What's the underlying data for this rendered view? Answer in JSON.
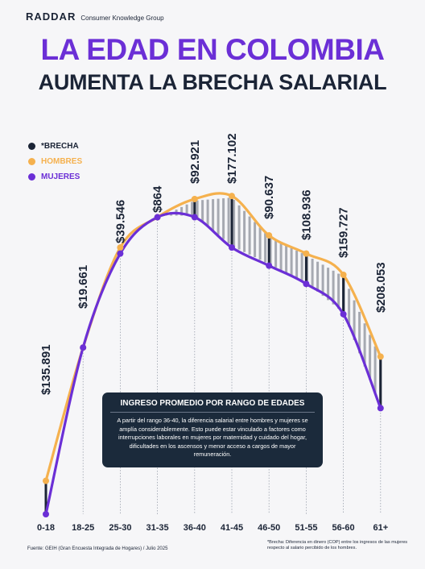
{
  "brand": {
    "logo": "RADDAR",
    "subtitle": "Consumer Knowledge Group"
  },
  "title_line1": "LA EDAD EN COLOMBIA",
  "title_line2": "AUMENTA LA BRECHA SALARIAL",
  "legend": [
    {
      "label": "*BRECHA",
      "color": "#1b2436"
    },
    {
      "label": "HOMBRES",
      "color": "#f5b14e"
    },
    {
      "label": "MUJERES",
      "color": "#6b2fd6"
    }
  ],
  "infobox": {
    "title": "INGRESO PROMEDIO POR RANGO DE EDADES",
    "body": "A partir del rango 36-40, la diferencia salarial entre hombres y mujeres se amplía considerablemente. Esto puede estar vinculado a factores como interrupciones laborales en mujeres por maternidad y cuidado del hogar, dificultades en los ascensos y menor acceso a cargos de mayor remuneración."
  },
  "footer_source": "Fuente: GEIH (Gran Encuesta Integrada de Hogares) / Julio 2025",
  "footer_note": "*Brecha: Diferencia en dinero (COP) entre los ingresos de las mujeres respecto al salario percibido de los hombres.",
  "chart_data": {
    "type": "line",
    "categories": [
      "0-18",
      "18-25",
      "25-30",
      "31-35",
      "36-40",
      "41-45",
      "46-50",
      "51-55",
      "56-60",
      "61+"
    ],
    "series": [
      {
        "name": "HOMBRES",
        "color": "#f5b14e",
        "values": [
          0.11,
          0.55,
          0.88,
          0.98,
          1.04,
          1.05,
          0.92,
          0.86,
          0.79,
          0.52
        ]
      },
      {
        "name": "MUJERES",
        "color": "#6b2fd6",
        "values": [
          0.0,
          0.55,
          0.86,
          0.98,
          0.98,
          0.88,
          0.82,
          0.76,
          0.66,
          0.35
        ]
      },
      {
        "name": "*BRECHA",
        "color": "#1b2436",
        "values": [
          135891,
          19661,
          39546,
          864,
          92921,
          177102,
          90637,
          108936,
          159727,
          208053
        ]
      }
    ],
    "gap_labels": [
      "$135.891",
      "$19.661",
      "$39.546",
      "$864",
      "$92.921",
      "$177.102",
      "$90.637",
      "$108.936",
      "$159.727",
      "$208.053"
    ],
    "note": "Values for HOMBRES and MUJERES are relative (no y-axis printed); gap values in COP."
  }
}
